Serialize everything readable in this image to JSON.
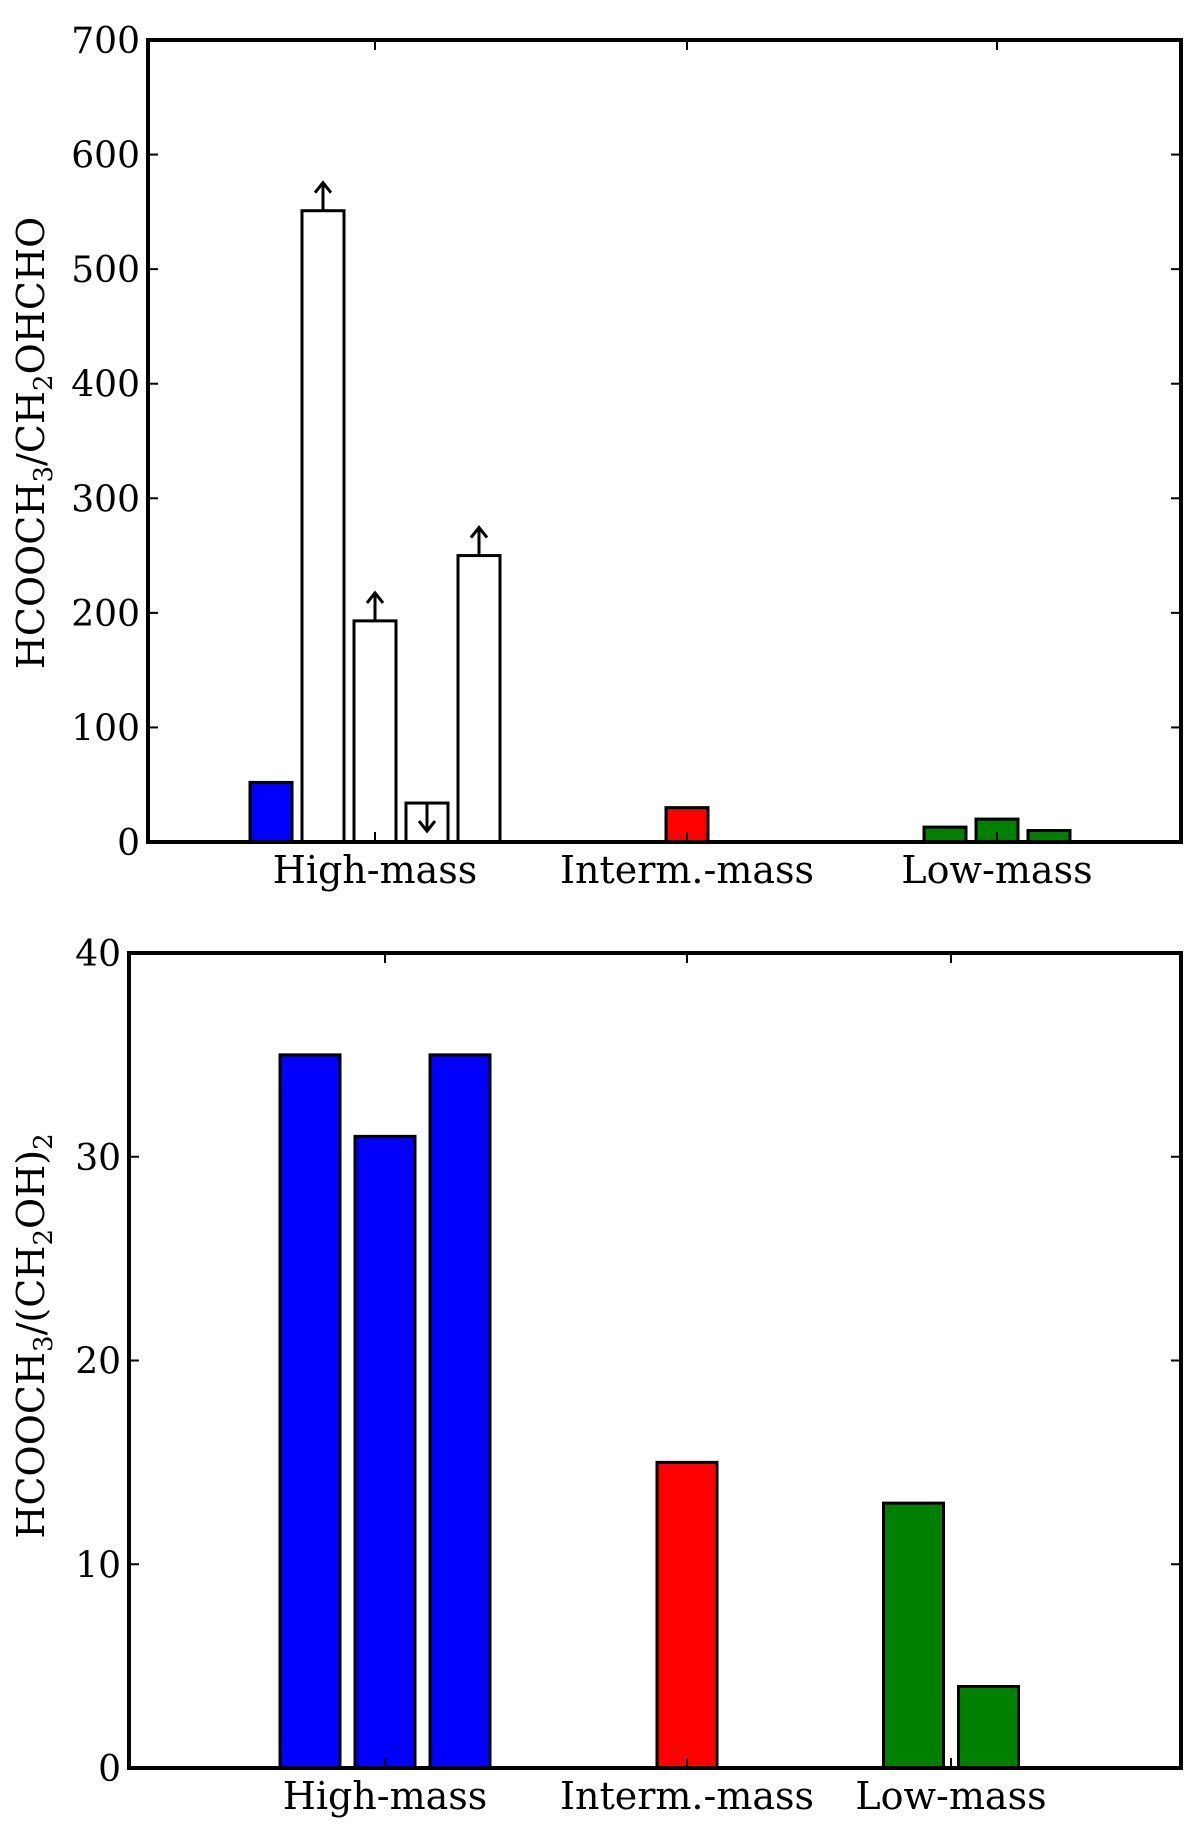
{
  "chart_data": [
    {
      "type": "bar",
      "ylabel": {
        "parts": [
          {
            "text": "HCOOCH",
            "sub": false
          },
          {
            "text": "3",
            "sub": true
          },
          {
            "text": "/CH",
            "sub": false
          },
          {
            "text": "2",
            "sub": true
          },
          {
            "text": "OHCHO",
            "sub": false
          }
        ]
      },
      "ylim": [
        0,
        700
      ],
      "yticks": [
        0,
        100,
        200,
        300,
        400,
        500,
        600,
        700
      ],
      "categories": [
        "High-mass",
        "Interm.-mass",
        "Low-mass"
      ],
      "grid": false,
      "bars": [
        {
          "category": "High-mass",
          "value": 52,
          "color": "#0000ff",
          "filled": true,
          "limit": "none"
        },
        {
          "category": "High-mass",
          "value": 551,
          "color": "#ffffff",
          "filled": false,
          "limit": "lower"
        },
        {
          "category": "High-mass",
          "value": 193,
          "color": "#ffffff",
          "filled": false,
          "limit": "lower"
        },
        {
          "category": "High-mass",
          "value": 34,
          "color": "#ffffff",
          "filled": false,
          "limit": "upper"
        },
        {
          "category": "High-mass",
          "value": 250,
          "color": "#ffffff",
          "filled": false,
          "limit": "lower"
        },
        {
          "category": "Interm.-mass",
          "value": 30,
          "color": "#ff0000",
          "filled": true,
          "limit": "none"
        },
        {
          "category": "Low-mass",
          "value": 13,
          "color": "#008000",
          "filled": true,
          "limit": "none"
        },
        {
          "category": "Low-mass",
          "value": 20,
          "color": "#008000",
          "filled": true,
          "limit": "none"
        },
        {
          "category": "Low-mass",
          "value": 10,
          "color": "#008000",
          "filled": true,
          "limit": "none"
        }
      ]
    },
    {
      "type": "bar",
      "ylabel": {
        "parts": [
          {
            "text": "HCOOCH",
            "sub": false
          },
          {
            "text": "3",
            "sub": true
          },
          {
            "text": "/(CH",
            "sub": false
          },
          {
            "text": "2",
            "sub": true
          },
          {
            "text": "OH)",
            "sub": false
          },
          {
            "text": "2",
            "sub": true
          }
        ]
      },
      "ylim": [
        0,
        40
      ],
      "yticks": [
        0,
        10,
        20,
        30,
        40
      ],
      "categories": [
        "High-mass",
        "Interm.-mass",
        "Low-mass"
      ],
      "grid": false,
      "bars": [
        {
          "category": "High-mass",
          "value": 35,
          "color": "#0000ff",
          "filled": true,
          "limit": "none"
        },
        {
          "category": "High-mass",
          "value": 31,
          "color": "#0000ff",
          "filled": true,
          "limit": "none"
        },
        {
          "category": "High-mass",
          "value": 35,
          "color": "#0000ff",
          "filled": true,
          "limit": "none"
        },
        {
          "category": "Interm.-mass",
          "value": 15,
          "color": "#ff0000",
          "filled": true,
          "limit": "none"
        },
        {
          "category": "Low-mass",
          "value": 13,
          "color": "#008000",
          "filled": true,
          "limit": "none"
        },
        {
          "category": "Low-mass",
          "value": 4,
          "color": "#008000",
          "filled": true,
          "limit": "none"
        }
      ]
    }
  ]
}
